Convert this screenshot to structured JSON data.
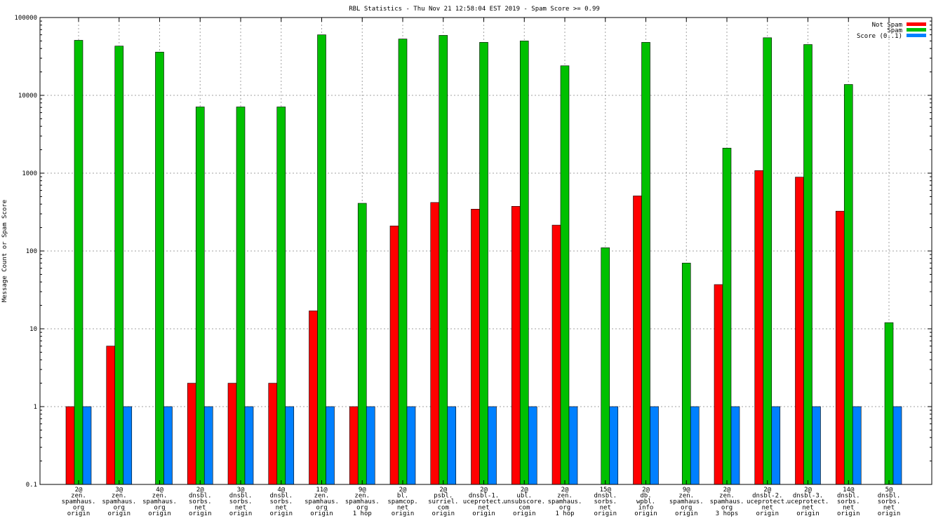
{
  "chart_data": {
    "type": "bar",
    "title": "RBL Statistics - Thu Nov 21 12:58:04 EST 2019 - Spam Score >= 0.99",
    "ylabel": "Message Count or Spam Score",
    "xlabel": "",
    "yscale": "log",
    "ylim": [
      0.1,
      100000
    ],
    "yticks": [
      "0.1",
      "1",
      "10",
      "100",
      "1000",
      "10000",
      "100000"
    ],
    "grid": true,
    "legend_position": "top-right",
    "categories": [
      [
        "2@",
        "zen.",
        "spamhaus.",
        "org",
        "origin"
      ],
      [
        "3@",
        "zen.",
        "spamhaus.",
        "org",
        "origin"
      ],
      [
        "4@",
        "zen.",
        "spamhaus.",
        "org",
        "origin"
      ],
      [
        "2@",
        "dnsbl.",
        "sorbs.",
        "net",
        "origin"
      ],
      [
        "3@",
        "dnsbl.",
        "sorbs.",
        "net",
        "origin"
      ],
      [
        "4@",
        "dnsbl.",
        "sorbs.",
        "net",
        "origin"
      ],
      [
        "11@",
        "zen.",
        "spamhaus.",
        "org",
        "origin"
      ],
      [
        "9@",
        "zen.",
        "spamhaus.",
        "org",
        "1 hop"
      ],
      [
        "2@",
        "bl.",
        "spamcop.",
        "net",
        "origin"
      ],
      [
        "2@",
        "psbl.",
        "surriel.",
        "com",
        "origin"
      ],
      [
        "2@",
        "dnsbl-1.",
        "uceprotect.",
        "net",
        "origin"
      ],
      [
        "2@",
        "ubl.",
        "unsubscore.",
        "com",
        "origin"
      ],
      [
        "2@",
        "zen.",
        "spamhaus.",
        "org",
        "1 hop"
      ],
      [
        "15@",
        "dnsbl.",
        "sorbs.",
        "net",
        "origin"
      ],
      [
        "2@",
        "db.",
        "wpbl.",
        "info",
        "origin"
      ],
      [
        "9@",
        "zen.",
        "spamhaus.",
        "org",
        "origin"
      ],
      [
        "2@",
        "zen.",
        "spamhaus.",
        "org",
        "3 hops"
      ],
      [
        "2@",
        "dnsbl-2.",
        "uceprotect.",
        "net",
        "origin"
      ],
      [
        "2@",
        "dnsbl-3.",
        "uceprotect.",
        "net",
        "origin"
      ],
      [
        "14@",
        "dnsbl.",
        "sorbs.",
        "net",
        "origin"
      ],
      [
        "5@",
        "dnsbl.",
        "sorbs.",
        "net",
        "origin"
      ]
    ],
    "series": [
      {
        "name": "Not Spam",
        "color": "#ff0000",
        "values": [
          1,
          6,
          null,
          2,
          2,
          2,
          17,
          1,
          210,
          420,
          345,
          375,
          215,
          null,
          510,
          null,
          37,
          1080,
          890,
          325,
          null
        ]
      },
      {
        "name": "Spam",
        "color": "#00c000",
        "values": [
          51000,
          43000,
          36000,
          7100,
          7100,
          7100,
          60000,
          410,
          53000,
          59000,
          48000,
          50000,
          24000,
          110,
          48000,
          70,
          2100,
          55000,
          45000,
          13800,
          12
        ]
      },
      {
        "name": "Score (0..1)",
        "color": "#0080ff",
        "values": [
          1,
          1,
          1,
          1,
          1,
          1,
          1,
          1,
          1,
          1,
          1,
          1,
          1,
          1,
          1,
          1,
          1,
          1,
          1,
          1,
          1
        ]
      }
    ]
  }
}
